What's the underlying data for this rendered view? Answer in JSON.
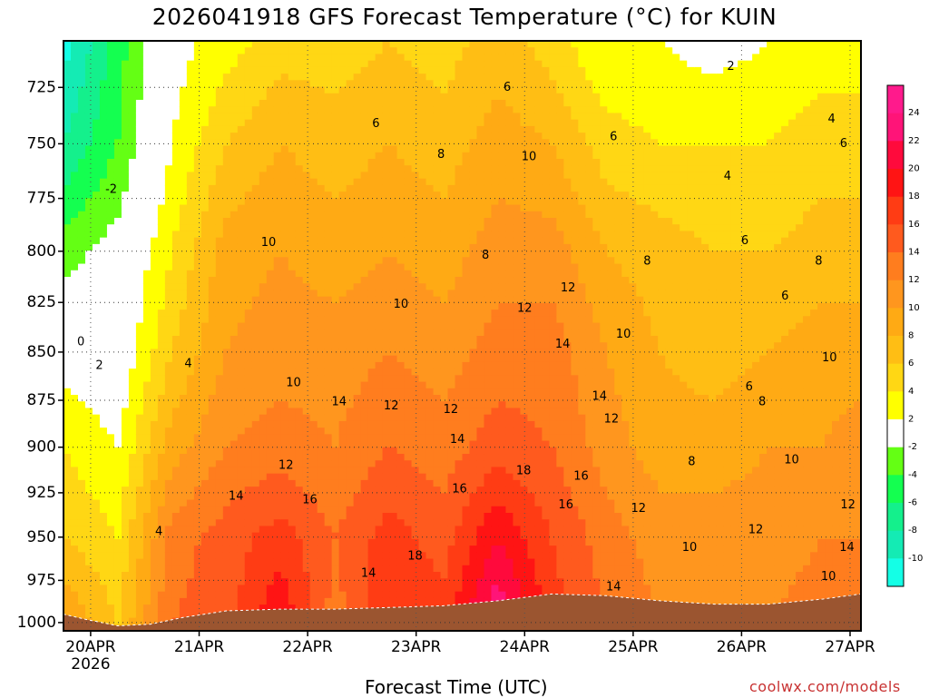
{
  "chart_data": {
    "type": "heatmap",
    "title": "2026041918 GFS Forecast Temperature (°C) for KUIN",
    "xlabel": "Forecast Time (UTC)",
    "ylabel": "",
    "credit": "coolwx.com/models",
    "y_scale": "log-pressure (hPa), inverted",
    "ylim": [
      1005,
      705
    ],
    "yticks": [
      725,
      750,
      775,
      800,
      825,
      850,
      875,
      900,
      925,
      950,
      975,
      1000
    ],
    "x_range_days": [
      0,
      7.35
    ],
    "x_origin": "2026-04-19 18Z",
    "xticks": [
      {
        "label": "20APR",
        "sublabel": "2026",
        "day": 0.25
      },
      {
        "label": "21APR",
        "sublabel": "",
        "day": 1.25
      },
      {
        "label": "22APR",
        "sublabel": "",
        "day": 2.25
      },
      {
        "label": "23APR",
        "sublabel": "",
        "day": 3.25
      },
      {
        "label": "24APR",
        "sublabel": "",
        "day": 4.25
      },
      {
        "label": "25APR",
        "sublabel": "",
        "day": 5.25
      },
      {
        "label": "26APR",
        "sublabel": "",
        "day": 6.25
      },
      {
        "label": "27APR",
        "sublabel": "",
        "day": 7.25
      }
    ],
    "grid": true,
    "contour_interval_c": 2,
    "colorbar": {
      "placement": "right",
      "labels": [
        "24",
        "22",
        "20",
        "18",
        "16",
        "14",
        "12",
        "10",
        "8",
        "6",
        "4",
        "2",
        "-2",
        "-4",
        "-6",
        "-8",
        "-10"
      ],
      "bins": [
        {
          "lo": 24,
          "hi": 26,
          "color": "#ff1a8c"
        },
        {
          "lo": 22,
          "hi": 24,
          "color": "#ff1478"
        },
        {
          "lo": 20,
          "hi": 22,
          "color": "#ff0a3c"
        },
        {
          "lo": 18,
          "hi": 20,
          "color": "#ff1414"
        },
        {
          "lo": 16,
          "hi": 18,
          "color": "#ff3c14"
        },
        {
          "lo": 14,
          "hi": 16,
          "color": "#ff5a1e"
        },
        {
          "lo": 12,
          "hi": 14,
          "color": "#ff7d1e"
        },
        {
          "lo": 10,
          "hi": 12,
          "color": "#ff961e"
        },
        {
          "lo": 8,
          "hi": 10,
          "color": "#ffaa14"
        },
        {
          "lo": 6,
          "hi": 8,
          "color": "#ffbe14"
        },
        {
          "lo": 4,
          "hi": 6,
          "color": "#ffd714"
        },
        {
          "lo": 2,
          "hi": 4,
          "color": "#ffff00"
        },
        {
          "lo": -2,
          "hi": 2,
          "color": "#ffffff"
        },
        {
          "lo": -4,
          "hi": -2,
          "color": "#64ff14"
        },
        {
          "lo": -6,
          "hi": -4,
          "color": "#14ff50"
        },
        {
          "lo": -8,
          "hi": -6,
          "color": "#14f08c"
        },
        {
          "lo": -10,
          "hi": -8,
          "color": "#14ebb4"
        },
        {
          "lo": -12,
          "hi": -10,
          "color": "#14ffe6"
        }
      ]
    },
    "terrain_color": "#9b5530",
    "terrain_pressure": [
      [
        0.0,
        995
      ],
      [
        0.2,
        998
      ],
      [
        0.5,
        1002
      ],
      [
        0.8,
        1001
      ],
      [
        1.1,
        997
      ],
      [
        1.5,
        993
      ],
      [
        2.0,
        992
      ],
      [
        2.5,
        992
      ],
      [
        3.0,
        991
      ],
      [
        3.5,
        990
      ],
      [
        4.0,
        987
      ],
      [
        4.5,
        983
      ],
      [
        5.0,
        984
      ],
      [
        5.5,
        987
      ],
      [
        6.0,
        989
      ],
      [
        6.5,
        989
      ],
      [
        7.0,
        986
      ],
      [
        7.35,
        983
      ]
    ],
    "temperature_profiles": [
      {
        "day": 0.0,
        "t1000": 10,
        "t950": 6,
        "t900": 4,
        "t850": 1,
        "t800": -3,
        "t750": -8,
        "t705": -11
      },
      {
        "day": 0.5,
        "t1000": 6,
        "t950": 4,
        "t900": 2,
        "t850": 0,
        "t800": -1,
        "t750": -4,
        "t705": -5
      },
      {
        "day": 1.0,
        "t1000": 14,
        "t950": 13,
        "t900": 9,
        "t850": 6,
        "t800": 4,
        "t750": 2,
        "t705": 1
      },
      {
        "day": 1.5,
        "t1000": 15,
        "t950": 15,
        "t900": 12,
        "t850": 10,
        "t800": 9,
        "t750": 6,
        "t705": 3
      },
      {
        "day": 2.0,
        "t1000": 20,
        "t950": 17,
        "t900": 13,
        "t850": 11,
        "t800": 10,
        "t750": 8,
        "t705": 5
      },
      {
        "day": 2.5,
        "t1000": 13,
        "t950": 14,
        "t900": 12,
        "t850": 11,
        "t800": 9,
        "t750": 7,
        "t705": 5
      },
      {
        "day": 3.0,
        "t1000": 18,
        "t950": 17,
        "t900": 14,
        "t850": 12,
        "t800": 10,
        "t750": 8,
        "t705": 6
      },
      {
        "day": 3.5,
        "t1000": 17,
        "t950": 15,
        "t900": 13,
        "t850": 11,
        "t800": 9,
        "t750": 7,
        "t705": 5
      },
      {
        "day": 4.0,
        "t1000": 24,
        "t950": 20,
        "t900": 15,
        "t850": 13,
        "t800": 11,
        "t750": 9,
        "t705": 7
      },
      {
        "day": 4.5,
        "t1000": 17,
        "t950": 16,
        "t900": 14,
        "t850": 13,
        "t800": 11,
        "t750": 8,
        "t705": 5
      },
      {
        "day": 5.0,
        "t1000": 14,
        "t950": 13,
        "t900": 11,
        "t850": 10,
        "t800": 8,
        "t750": 5,
        "t705": 2
      },
      {
        "day": 5.5,
        "t1000": 12,
        "t950": 11,
        "t900": 9,
        "t850": 8,
        "t800": 7,
        "t750": 4,
        "t705": 2
      },
      {
        "day": 6.0,
        "t1000": 12,
        "t950": 11,
        "t900": 9,
        "t850": 7,
        "t800": 6,
        "t750": 4,
        "t705": 1
      },
      {
        "day": 6.5,
        "t1000": 12,
        "t950": 11,
        "t900": 10,
        "t850": 8,
        "t800": 6,
        "t750": 4,
        "t705": 2
      },
      {
        "day": 7.0,
        "t1000": 13,
        "t950": 12,
        "t900": 10,
        "t850": 9,
        "t800": 7,
        "t750": 5,
        "t705": 3
      },
      {
        "day": 7.35,
        "t1000": 13,
        "t950": 12,
        "t900": 11,
        "t850": 9,
        "t800": 7,
        "t750": 5,
        "t705": 3
      }
    ],
    "contour_labels": [
      {
        "text": "0",
        "day": 0.16,
        "p": 845
      },
      {
        "text": "2",
        "day": 0.33,
        "p": 857
      },
      {
        "text": "-2",
        "day": 0.44,
        "p": 771
      },
      {
        "text": "4",
        "day": 0.88,
        "p": 947
      },
      {
        "text": "4",
        "day": 1.15,
        "p": 856
      },
      {
        "text": "10",
        "day": 1.89,
        "p": 796
      },
      {
        "text": "14",
        "day": 1.59,
        "p": 927
      },
      {
        "text": "10",
        "day": 2.12,
        "p": 866
      },
      {
        "text": "12",
        "day": 2.05,
        "p": 910
      },
      {
        "text": "16",
        "day": 2.27,
        "p": 929
      },
      {
        "text": "14",
        "day": 2.54,
        "p": 876
      },
      {
        "text": "14",
        "day": 2.81,
        "p": 971
      },
      {
        "text": "12",
        "day": 3.02,
        "p": 878
      },
      {
        "text": "18",
        "day": 3.24,
        "p": 961
      },
      {
        "text": "10",
        "day": 3.11,
        "p": 826
      },
      {
        "text": "12",
        "day": 3.57,
        "p": 880
      },
      {
        "text": "14",
        "day": 3.63,
        "p": 896
      },
      {
        "text": "16",
        "day": 3.65,
        "p": 923
      },
      {
        "text": "6",
        "day": 2.88,
        "p": 741
      },
      {
        "text": "8",
        "day": 3.48,
        "p": 755
      },
      {
        "text": "8",
        "day": 3.89,
        "p": 802
      },
      {
        "text": "6",
        "day": 4.09,
        "p": 725
      },
      {
        "text": "10",
        "day": 4.29,
        "p": 756
      },
      {
        "text": "12",
        "day": 4.25,
        "p": 828
      },
      {
        "text": "14",
        "day": 4.6,
        "p": 846
      },
      {
        "text": "12",
        "day": 4.65,
        "p": 818
      },
      {
        "text": "18",
        "day": 4.24,
        "p": 913
      },
      {
        "text": "14",
        "day": 4.94,
        "p": 873
      },
      {
        "text": "12",
        "day": 5.05,
        "p": 885
      },
      {
        "text": "16",
        "day": 4.77,
        "p": 916
      },
      {
        "text": "16",
        "day": 4.63,
        "p": 932
      },
      {
        "text": "14",
        "day": 5.07,
        "p": 979
      },
      {
        "text": "6",
        "day": 5.07,
        "p": 747
      },
      {
        "text": "8",
        "day": 5.38,
        "p": 805
      },
      {
        "text": "10",
        "day": 5.16,
        "p": 841
      },
      {
        "text": "12",
        "day": 5.3,
        "p": 934
      },
      {
        "text": "10",
        "day": 5.77,
        "p": 956
      },
      {
        "text": "8",
        "day": 5.79,
        "p": 908
      },
      {
        "text": "2",
        "day": 6.15,
        "p": 716
      },
      {
        "text": "4",
        "day": 6.12,
        "p": 765
      },
      {
        "text": "6",
        "day": 6.28,
        "p": 795
      },
      {
        "text": "6",
        "day": 6.32,
        "p": 868
      },
      {
        "text": "8",
        "day": 6.44,
        "p": 876
      },
      {
        "text": "12",
        "day": 6.38,
        "p": 946
      },
      {
        "text": "6",
        "day": 6.65,
        "p": 822
      },
      {
        "text": "10",
        "day": 6.71,
        "p": 907
      },
      {
        "text": "8",
        "day": 6.96,
        "p": 805
      },
      {
        "text": "4",
        "day": 7.08,
        "p": 739
      },
      {
        "text": "6",
        "day": 7.19,
        "p": 750
      },
      {
        "text": "10",
        "day": 7.06,
        "p": 853
      },
      {
        "text": "12",
        "day": 7.23,
        "p": 932
      },
      {
        "text": "14",
        "day": 7.22,
        "p": 956
      },
      {
        "text": "10",
        "day": 7.05,
        "p": 973
      }
    ]
  }
}
